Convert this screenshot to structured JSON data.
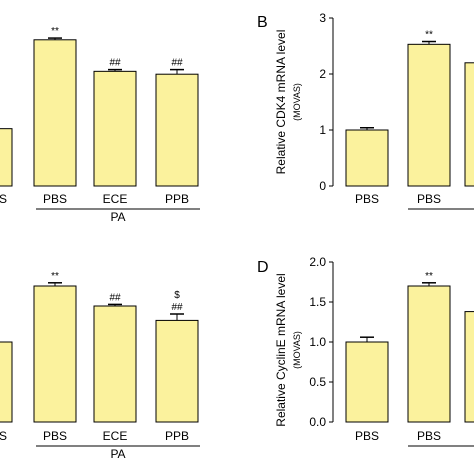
{
  "colors": {
    "bar_fill": "#fbf29d",
    "stroke": "#000000"
  },
  "chart_data": [
    {
      "type": "bar",
      "panel": "",
      "ylabel": "",
      "ylabel_sub": "",
      "categories": [
        "S",
        "PBS",
        "ECE",
        "PPB"
      ],
      "values": [
        1.0,
        2.55,
        2.0,
        1.95
      ],
      "errors": [
        0.0,
        0.03,
        0.03,
        0.08
      ],
      "sig_top": [
        "",
        "**",
        "",
        ""
      ],
      "sig_mid": [
        "",
        "",
        "##",
        "##"
      ],
      "group_label": "PA",
      "ylim": [
        0,
        3
      ],
      "yticks": [],
      "grid": false
    },
    {
      "type": "bar",
      "panel": "B",
      "ylabel": "Relative CDK4 mRNA level",
      "ylabel_sub": "(MOVAS)",
      "categories": [
        "PBS",
        "PBS",
        ""
      ],
      "values": [
        1.0,
        2.53,
        2.2
      ],
      "errors": [
        0.04,
        0.05,
        0.0
      ],
      "sig_top": [
        "",
        "**",
        ""
      ],
      "sig_mid": [
        "",
        "",
        ""
      ],
      "group_label": "",
      "ylim": [
        0,
        3
      ],
      "yticks": [
        "0",
        "1",
        "2",
        "3"
      ],
      "grid": false
    },
    {
      "type": "bar",
      "panel": "",
      "ylabel": "",
      "ylabel_sub": "",
      "categories": [
        "S",
        "PBS",
        "ECE",
        "PPB"
      ],
      "values": [
        1.0,
        1.7,
        1.45,
        1.27
      ],
      "errors": [
        0.0,
        0.04,
        0.02,
        0.08
      ],
      "sig_top": [
        "",
        "**",
        "",
        "$"
      ],
      "sig_mid": [
        "",
        "",
        "##",
        "##"
      ],
      "group_label": "PA",
      "ylim": [
        0,
        2.0
      ],
      "yticks": [],
      "grid": false
    },
    {
      "type": "bar",
      "panel": "D",
      "ylabel": "Relative CyclinE mRNA level",
      "ylabel_sub": "(MOVAS)",
      "categories": [
        "PBS",
        "PBS",
        ""
      ],
      "values": [
        1.0,
        1.7,
        1.38
      ],
      "errors": [
        0.06,
        0.04,
        0.0
      ],
      "sig_top": [
        "",
        "**",
        ""
      ],
      "sig_mid": [
        "",
        "",
        ""
      ],
      "group_label": "",
      "ylim": [
        0,
        2.0
      ],
      "yticks": [
        "0.0",
        "0.5",
        "1.0",
        "1.5",
        "2.0"
      ],
      "grid": false
    }
  ]
}
